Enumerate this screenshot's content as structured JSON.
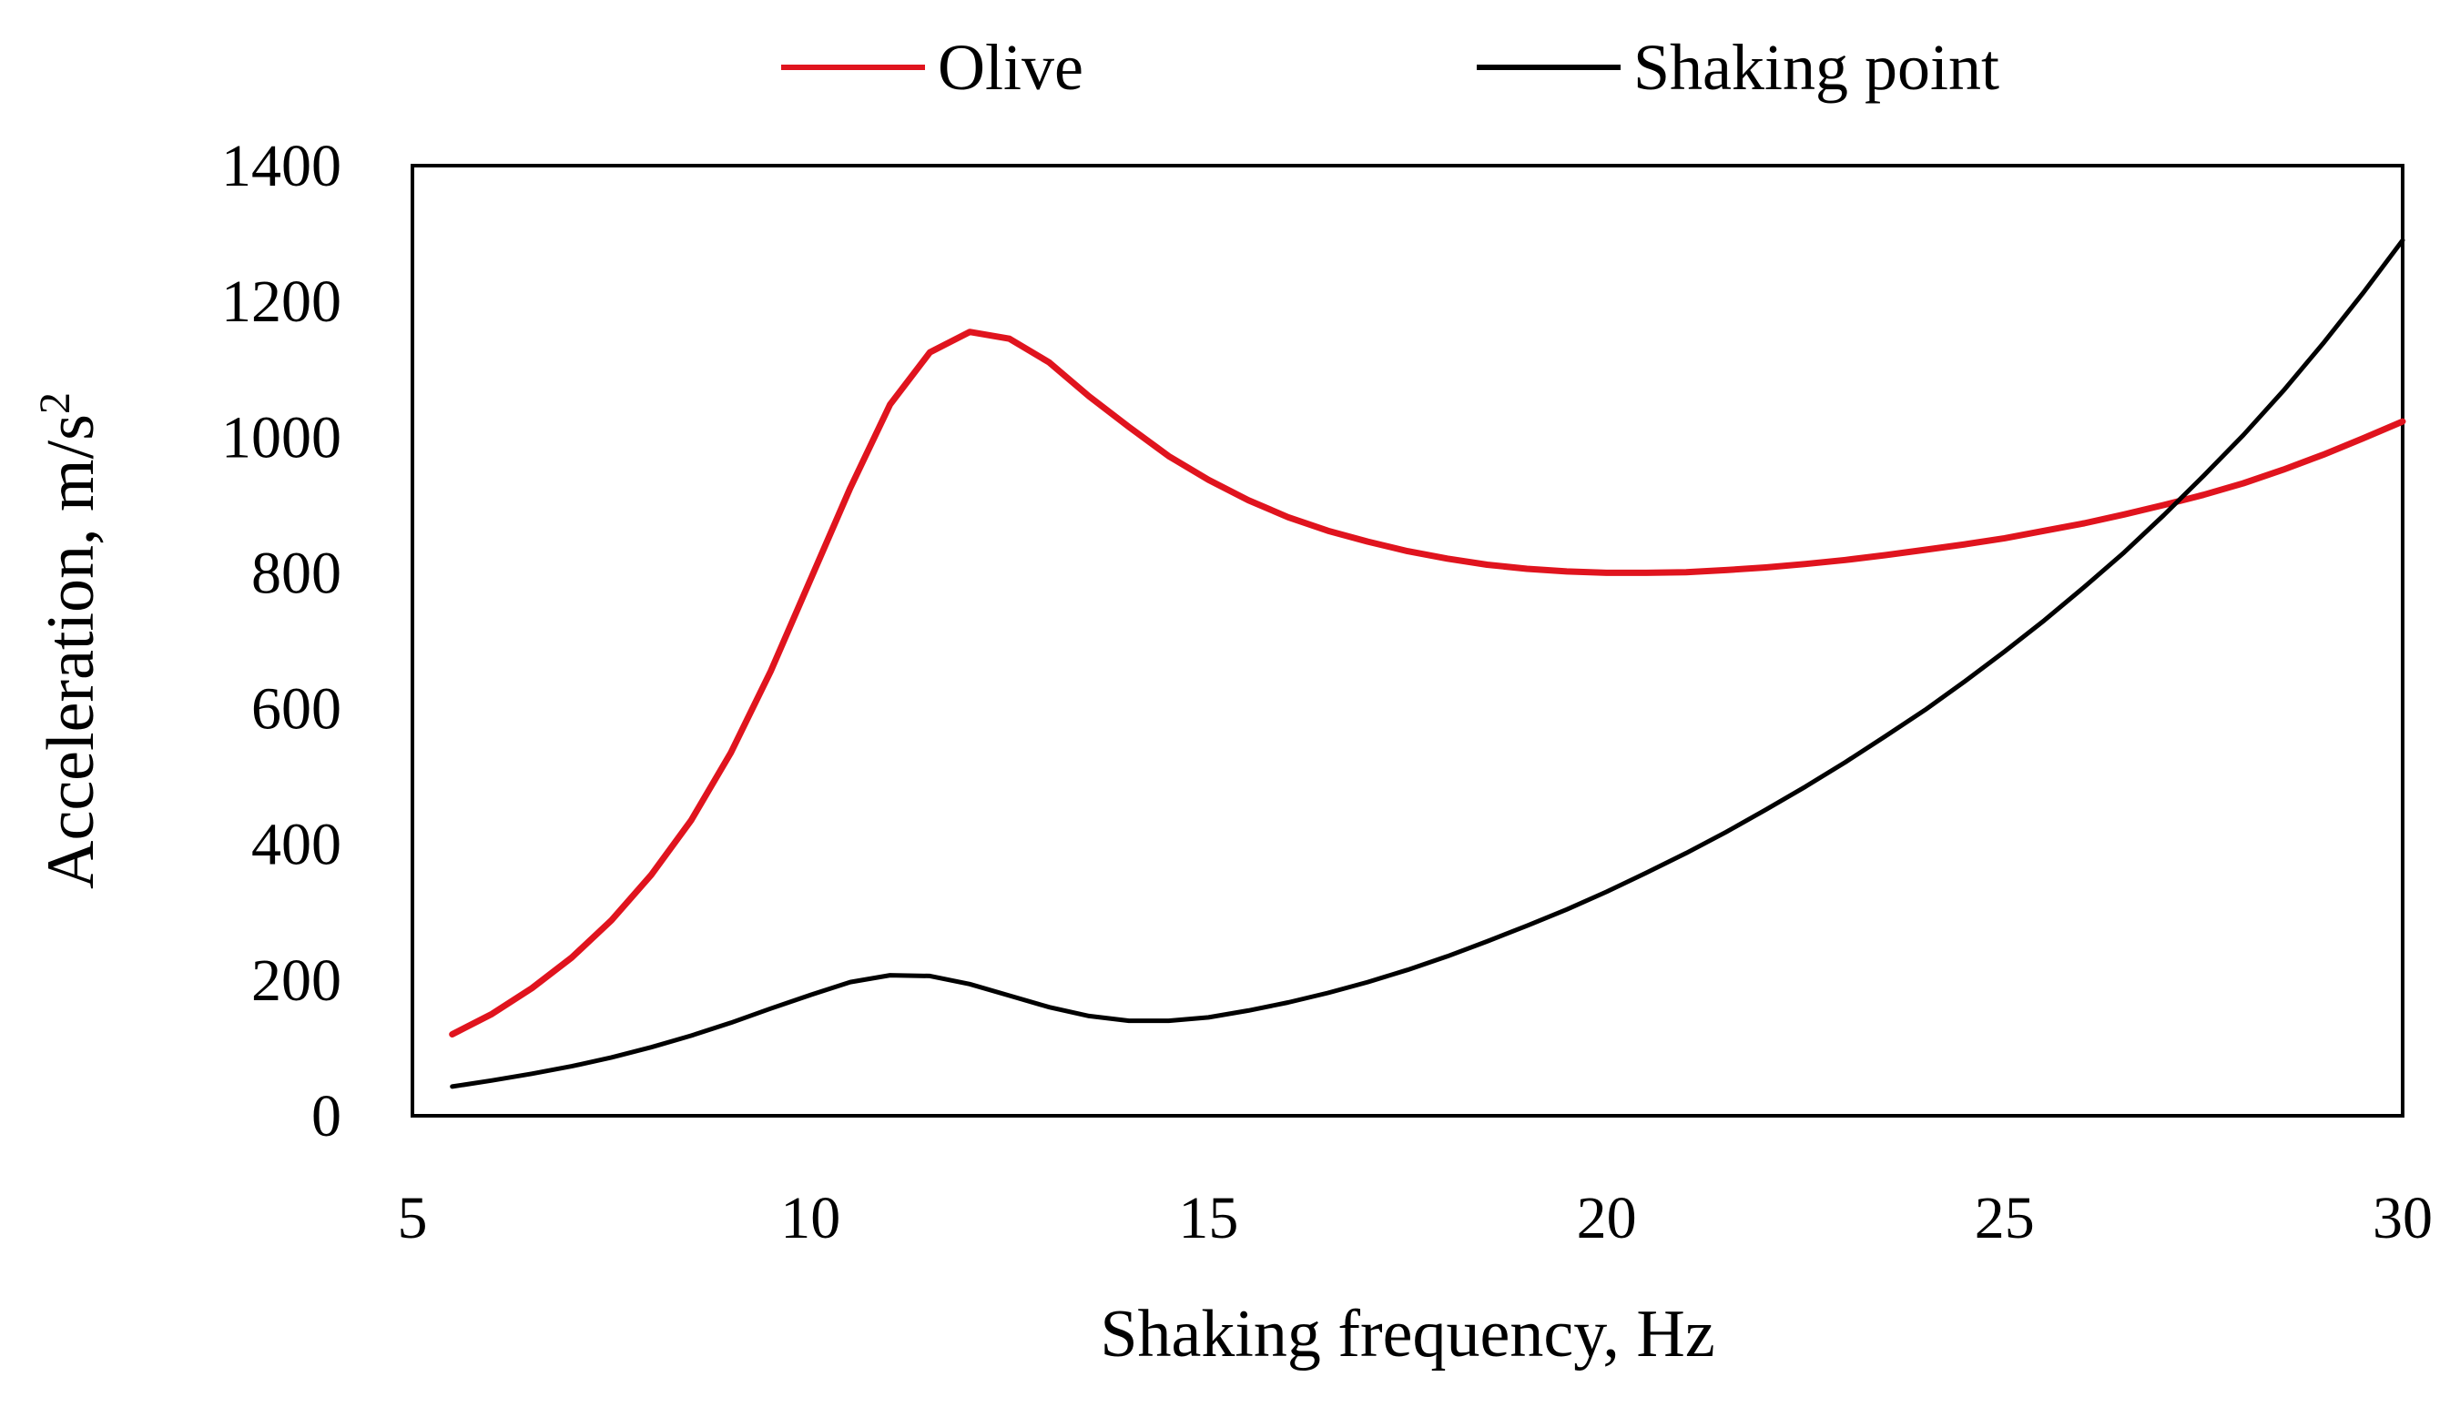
{
  "chart_data": {
    "type": "line",
    "title": "",
    "xlabel": "Shaking frequency, Hz",
    "ylabel_main": "Acceleration, m/s",
    "ylabel_superscript": "2",
    "xlim": [
      5,
      30
    ],
    "ylim": [
      0,
      1400
    ],
    "x_ticks": [
      "5",
      "10",
      "15",
      "20",
      "25",
      "30"
    ],
    "y_ticks": [
      "0",
      "200",
      "400",
      "600",
      "800",
      "1000",
      "1200",
      "1400"
    ],
    "x_tick_values": [
      5,
      10,
      15,
      20,
      25,
      30
    ],
    "y_tick_values": [
      0,
      200,
      400,
      600,
      800,
      1000,
      1200,
      1400
    ],
    "grid": false,
    "legend_position": "top",
    "series": [
      {
        "name": "Olive",
        "color": "#e0141e",
        "x": [
          5.5,
          6,
          6.5,
          7,
          7.5,
          8,
          8.5,
          9,
          9.5,
          10,
          10.5,
          11,
          11.5,
          12,
          12.5,
          13,
          13.5,
          14,
          14.5,
          15,
          15.5,
          16,
          16.5,
          17,
          17.5,
          18,
          18.5,
          19,
          19.5,
          20,
          20.5,
          21,
          21.5,
          22,
          22.5,
          23,
          23.5,
          24,
          24.5,
          25,
          25.5,
          26,
          26.5,
          27,
          27.5,
          28,
          28.5,
          29,
          29.5,
          30
        ],
        "values": [
          120,
          150,
          188,
          233,
          288,
          355,
          435,
          535,
          655,
          790,
          925,
          1048,
          1125,
          1155,
          1145,
          1110,
          1060,
          1015,
          972,
          937,
          907,
          882,
          862,
          846,
          832,
          821,
          812,
          806,
          802,
          800,
          800,
          801,
          804,
          808,
          813,
          819,
          826,
          834,
          842,
          851,
          862,
          873,
          886,
          900,
          915,
          932,
          952,
          974,
          998,
          1023
        ]
      },
      {
        "name": "Shaking point",
        "color": "#000000",
        "x": [
          5.5,
          6,
          6.5,
          7,
          7.5,
          8,
          8.5,
          9,
          9.5,
          10,
          10.5,
          11,
          11.5,
          12,
          12.5,
          13,
          13.5,
          14,
          14.5,
          15,
          15.5,
          16,
          16.5,
          17,
          17.5,
          18,
          18.5,
          19,
          19.5,
          20,
          20.5,
          21,
          21.5,
          22,
          22.5,
          23,
          23.5,
          24,
          24.5,
          25,
          25.5,
          26,
          26.5,
          27,
          27.5,
          28,
          28.5,
          29,
          29.5,
          30
        ],
        "values": [
          43,
          52,
          62,
          73,
          86,
          101,
          118,
          137,
          158,
          178,
          197,
          207,
          206,
          194,
          177,
          160,
          147,
          140,
          140,
          145,
          155,
          167,
          181,
          197,
          215,
          235,
          257,
          280,
          304,
          330,
          358,
          387,
          418,
          451,
          485,
          521,
          559,
          598,
          640,
          684,
          730,
          779,
          830,
          885,
          943,
          1003,
          1068,
          1138,
          1212,
          1290
        ]
      }
    ]
  }
}
